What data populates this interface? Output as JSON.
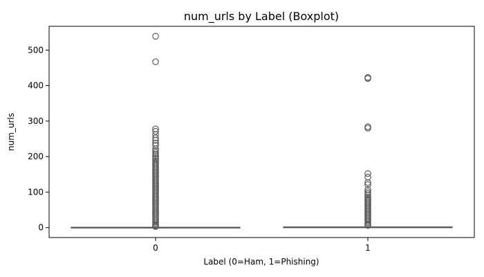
{
  "chart_data": {
    "type": "boxplot",
    "title": "num_urls by Label (Boxplot)",
    "xlabel": "Label (0=Ham, 1=Phishing)",
    "ylabel": "num_urls",
    "categories": [
      "0",
      "1"
    ],
    "ylim": [
      -28,
      567
    ],
    "yticks": [
      0,
      100,
      200,
      300,
      400,
      500
    ],
    "grid": false,
    "legend": "none",
    "colors": {
      "box_fill_0": "#f9c6a8",
      "box_fill_1": "#d9c7a8",
      "stroke": "#5a5a5a",
      "outlier_edge": "#5a5a5a"
    },
    "boxes": [
      {
        "category": "0",
        "q1": 0,
        "median": 0,
        "q3": 1,
        "whisker_low": 0,
        "whisker_high": 2
      },
      {
        "category": "1",
        "q1": 0,
        "median": 1,
        "q3": 2,
        "whisker_low": 0,
        "whisker_high": 5
      }
    ],
    "outliers": [
      {
        "category": "0",
        "values": [
          539,
          467,
          278,
          271,
          262,
          253,
          246,
          238,
          231,
          222,
          217,
          212,
          207,
          202,
          197,
          193,
          188,
          184,
          180,
          176,
          172,
          168,
          164,
          160,
          156,
          152,
          148,
          144,
          140,
          136,
          132,
          128,
          124,
          120,
          116,
          112,
          108,
          104,
          100,
          96,
          92,
          88,
          84,
          80,
          76,
          72,
          68,
          64,
          60,
          56,
          52,
          48,
          44,
          40,
          36,
          32,
          28,
          24,
          20,
          16,
          12,
          8,
          6,
          4,
          3
        ]
      },
      {
        "category": "1",
        "values": [
          423,
          420,
          284,
          280,
          152,
          142,
          127,
          121,
          107,
          101,
          96,
          91,
          86,
          82,
          78,
          74,
          70,
          66,
          62,
          58,
          54,
          50,
          46,
          42,
          38,
          34,
          30,
          26,
          22,
          18,
          14,
          10,
          8,
          6
        ]
      }
    ]
  }
}
